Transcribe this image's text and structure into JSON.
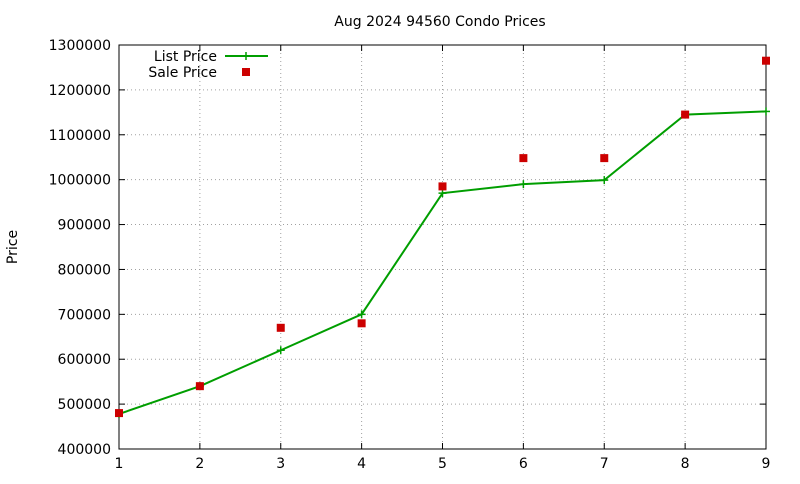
{
  "chart_data": {
    "type": "line",
    "title": "Aug 2024 94560 Condo Prices",
    "xlabel": "",
    "ylabel": "Price",
    "xlim": [
      1,
      9
    ],
    "ylim": [
      400000,
      1300000
    ],
    "xticks": [
      1,
      2,
      3,
      4,
      5,
      6,
      7,
      8,
      9
    ],
    "yticks": [
      400000,
      500000,
      600000,
      700000,
      800000,
      900000,
      1000000,
      1100000,
      1200000,
      1300000
    ],
    "grid": true,
    "legend_position": "top-left",
    "series": [
      {
        "name": "List Price",
        "style": "line-with-plus-markers",
        "color": "#009e00",
        "x": [
          1,
          2,
          3,
          4,
          5,
          6,
          7,
          8,
          9
        ],
        "y": [
          478000,
          540000,
          620000,
          700000,
          970000,
          990000,
          999000,
          1145000,
          1152000
        ]
      },
      {
        "name": "Sale Price",
        "style": "square-markers",
        "color": "#cc0000",
        "x": [
          1,
          2,
          3,
          4,
          5,
          6,
          7,
          8,
          9
        ],
        "y": [
          480000,
          540000,
          670000,
          680000,
          985000,
          1048000,
          1048000,
          1145000,
          1265000
        ]
      }
    ]
  }
}
